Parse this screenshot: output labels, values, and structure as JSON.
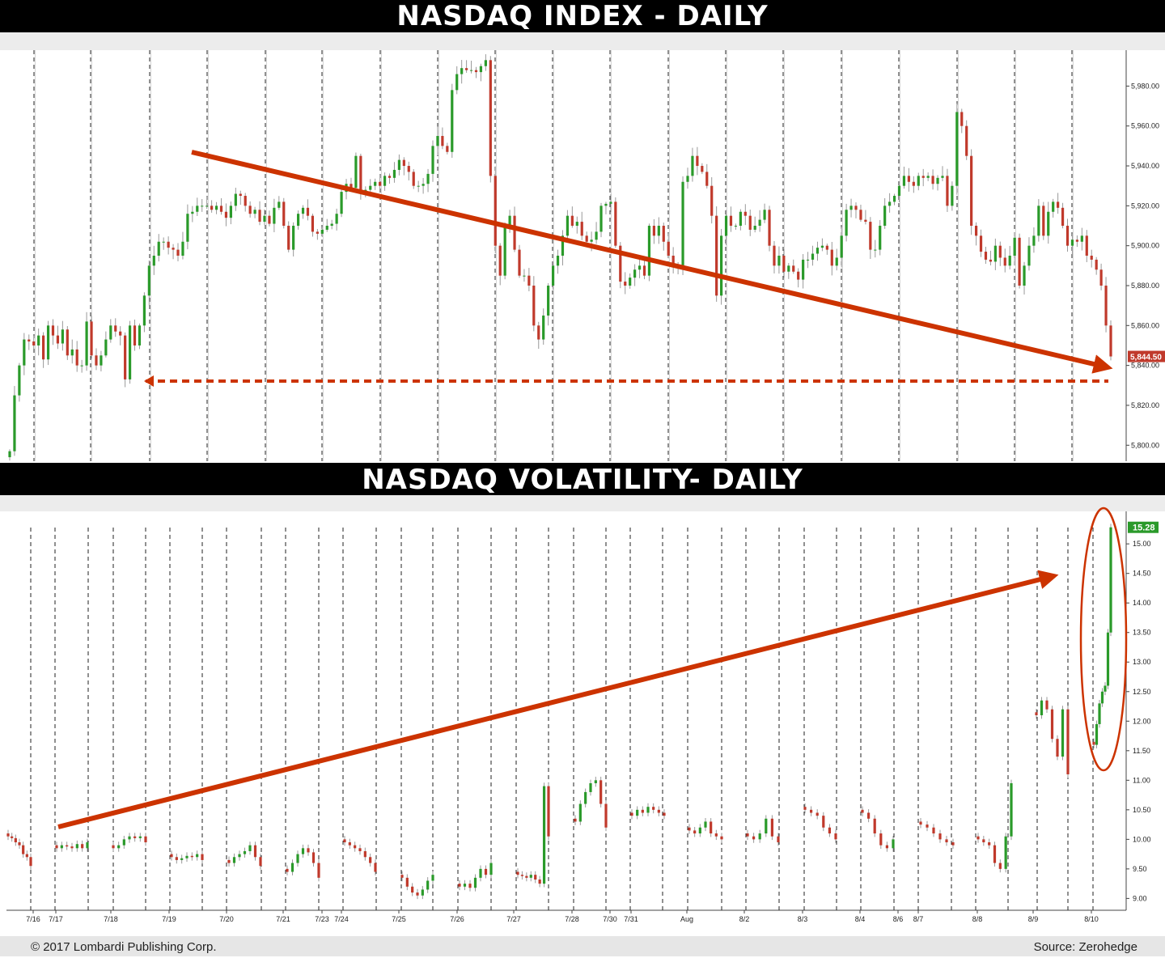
{
  "chart_data": [
    {
      "type": "candlestick",
      "title": "NASDAQ INDEX - DAILY",
      "ylim": [
        5792,
        5998
      ],
      "y_ticks": [
        5800,
        5820,
        5840,
        5860,
        5880,
        5900,
        5920,
        5940,
        5960,
        5980
      ],
      "y_tick_labels": [
        "5,800.00",
        "5,820.00",
        "5,840.00",
        "5,860.00",
        "5,880.00",
        "5,900.00",
        "5,920.00",
        "5,940.00",
        "5,960.00",
        "5,980.00"
      ],
      "last_value_label": "5,844.50",
      "up_color": "#2a9a2a",
      "down_color": "#c0392b",
      "annotation_color": "#cc3300",
      "series": [
        {
          "values": [
            5797,
            5825,
            5840,
            5853,
            5852,
            5850,
            5855,
            5843,
            5860,
            5855,
            5851,
            5858,
            5845,
            5848,
            5840,
            5840,
            5862,
            5845,
            5840,
            5845,
            5853,
            5860,
            5857,
            5855,
            5833,
            5860,
            5850,
            5860,
            5875,
            5890,
            5895,
            5902,
            5902,
            5899,
            5898,
            5895,
            5902,
            5916,
            5917,
            5920,
            5920,
            5920,
            5918,
            5920,
            5917,
            5914,
            5920,
            5926,
            5925,
            5920,
            5916,
            5918,
            5912,
            5915,
            5911,
            5919,
            5922,
            5910,
            5898,
            5910,
            5916,
            5919,
            5915,
            5907,
            5906,
            5908,
            5910,
            5911,
            5916,
            5927,
            5931,
            5929,
            5945,
            5927,
            5928,
            5930,
            5932,
            5930,
            5935,
            5934,
            5938,
            5943,
            5940,
            5937,
            5930,
            5930,
            5931,
            5936,
            5950,
            5955,
            5950,
            5947,
            5978,
            5986,
            5989,
            5988,
            5988,
            5987,
            5990,
            5993,
            5935,
            5900,
            5885,
            5910,
            5915,
            5898,
            5885,
            5885,
            5880,
            5860,
            5853,
            5865,
            5880,
            5890,
            5895,
            5905,
            5915,
            5910,
            5912,
            5905,
            5902,
            5903,
            5907,
            5920,
            5921,
            5922,
            5900,
            5882,
            5880,
            5884,
            5888,
            5890,
            5885,
            5910,
            5905,
            5910,
            5902,
            5895,
            5890,
            5890,
            5932,
            5935,
            5945,
            5940,
            5937,
            5930,
            5915,
            5875,
            5905,
            5915,
            5910,
            5910,
            5917,
            5915,
            5908,
            5910,
            5913,
            5918,
            5900,
            5890,
            5895,
            5887,
            5890,
            5887,
            5883,
            5893,
            5893,
            5896,
            5899,
            5900,
            5898,
            5890,
            5894,
            5905,
            5918,
            5920,
            5918,
            5913,
            5912,
            5898,
            5898,
            5910,
            5920,
            5922,
            5925,
            5930,
            5935,
            5932,
            5930,
            5935,
            5934,
            5935,
            5931,
            5934,
            5935,
            5920,
            5930,
            5967,
            5960,
            5945,
            5910,
            5905,
            5897,
            5893,
            5892,
            5900,
            5894,
            5890,
            5895,
            5904,
            5880,
            5890,
            5900,
            5905,
            5920,
            5905,
            5917,
            5922,
            5919,
            5910,
            5900,
            5903,
            5902,
            5905,
            5895,
            5893,
            5888,
            5880,
            5860,
            5844.5
          ]
        }
      ]
    },
    {
      "type": "line",
      "title": "NASDAQ VOLATILITY- DAILY",
      "ylim": [
        8.8,
        15.55
      ],
      "y_ticks": [
        9.0,
        9.5,
        10.0,
        10.5,
        11.0,
        11.5,
        12.0,
        12.5,
        13.0,
        13.5,
        14.0,
        14.5,
        15.0
      ],
      "y_tick_labels": [
        "9.00",
        "9.50",
        "10.00",
        "10.50",
        "11.00",
        "11.50",
        "12.00",
        "12.50",
        "13.00",
        "13.50",
        "14.00",
        "14.50",
        "15.00"
      ],
      "last_value_label": "15.28",
      "x_tick_labels": [
        "7/16",
        "7/17",
        "7/18",
        "7/19",
        "7/20",
        "7/21",
        "7/23",
        "7/24",
        "7/25",
        "7/26",
        "7/27",
        "7/28",
        "7/30",
        "7/31",
        "Aug",
        "8/2",
        "8/3",
        "8/4",
        "8/6",
        "8/7",
        "8/8",
        "8/9",
        "8/10"
      ],
      "series": [
        {
          "segments": [
            [
              10.05,
              10.02,
              9.95,
              9.9,
              9.75,
              9.7,
              9.55
            ],
            [
              9.85,
              9.9,
              9.88,
              9.85,
              9.92,
              9.85,
              9.95
            ],
            [
              9.85,
              9.9,
              10.0,
              10.05,
              10.02,
              10.05,
              9.95
            ],
            [
              9.7,
              9.65,
              9.68,
              9.72,
              9.7,
              9.75,
              9.65
            ],
            [
              9.6,
              9.7,
              9.75,
              9.8,
              9.9,
              9.7,
              9.55
            ],
            [
              9.45,
              9.6,
              9.75,
              9.85,
              9.78,
              9.6,
              9.35
            ],
            [
              9.95,
              9.9,
              9.85,
              9.8,
              9.7,
              9.6,
              9.45
            ],
            [
              9.35,
              9.2,
              9.1,
              9.05,
              9.15,
              9.3,
              9.4
            ],
            [
              9.2,
              9.25,
              9.18,
              9.35,
              9.5,
              9.4,
              9.6
            ],
            [
              9.4,
              9.38,
              9.35,
              9.4,
              9.32,
              9.25,
              10.9,
              10.05
            ],
            [
              10.3,
              10.6,
              10.8,
              10.95,
              11.0,
              10.6,
              10.2
            ],
            [
              10.4,
              10.5,
              10.45,
              10.55,
              10.5,
              10.45,
              10.4
            ],
            [
              10.15,
              10.1,
              10.2,
              10.3,
              10.1,
              10.05,
              10.0
            ],
            [
              10.05,
              10.0,
              10.1,
              10.35,
              10.05,
              9.95
            ],
            [
              10.5,
              10.45,
              10.4,
              10.2,
              10.1,
              10.0
            ],
            [
              10.45,
              10.35,
              10.1,
              9.9,
              9.85,
              10.0
            ],
            [
              10.25,
              10.2,
              10.1,
              10.0,
              9.95,
              9.9
            ],
            [
              10.0,
              9.95,
              9.9,
              9.6,
              9.5,
              10.05,
              10.95
            ],
            [
              12.1,
              12.35,
              12.2,
              11.7,
              11.4,
              12.2,
              11.1
            ],
            [
              11.6,
              11.95,
              12.3,
              12.5,
              12.6,
              13.5,
              15.28
            ]
          ]
        }
      ]
    }
  ],
  "footer": {
    "copyright": "© 2017 Lombardi Publishing Corp.",
    "source": "Source: Zerohedge"
  }
}
